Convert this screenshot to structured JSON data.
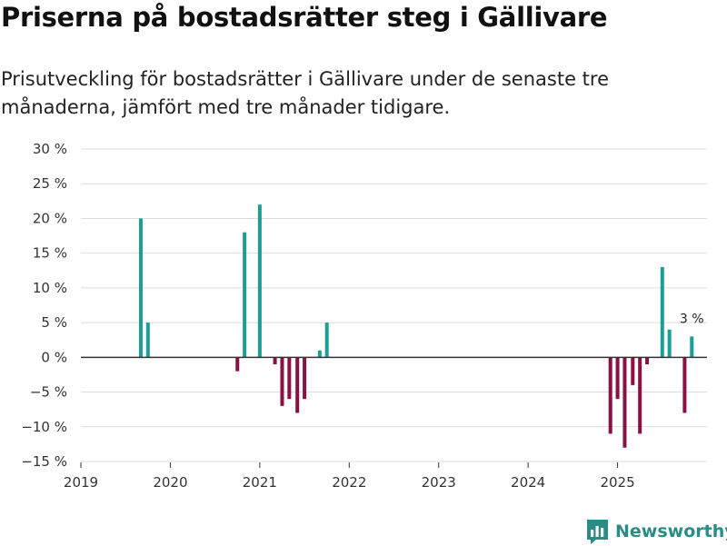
{
  "title": "Priserna på bostadsrätter steg i Gällivare",
  "subtitle": "Prisutveckling för bostadsrätter i Gällivare under de senaste tre månaderna, jämfört med tre månader tidigare.",
  "brand": {
    "name": "Newsworthy",
    "icon": "newsworthy-logo-icon"
  },
  "colors": {
    "positive": "#1a9e96",
    "negative": "#8c0f45",
    "grid": "#dddddd",
    "zero": "#333333",
    "brand": "#2a8c84"
  },
  "chart_data": {
    "type": "bar",
    "title": "Priserna på bostadsrätter steg i Gällivare",
    "xlabel": "",
    "ylabel": "",
    "ylim": [
      -15,
      30
    ],
    "yticks": [
      -15,
      -10,
      -5,
      0,
      5,
      10,
      15,
      20,
      25,
      30
    ],
    "ytick_labels": [
      "−15 %",
      "−10 %",
      "−5 %",
      "0 %",
      "5 %",
      "10 %",
      "15 %",
      "20 %",
      "25 %",
      "30 %"
    ],
    "xlim": [
      2019.0,
      2026.0
    ],
    "xticks": [
      2019,
      2020,
      2021,
      2022,
      2023,
      2024,
      2025
    ],
    "xtick_labels": [
      "2019",
      "2020",
      "2021",
      "2022",
      "2023",
      "2024",
      "2025"
    ],
    "points": [
      {
        "x": 2019.67,
        "y": 20
      },
      {
        "x": 2019.75,
        "y": 5
      },
      {
        "x": 2020.75,
        "y": -2
      },
      {
        "x": 2020.83,
        "y": 18
      },
      {
        "x": 2021.0,
        "y": 22
      },
      {
        "x": 2021.17,
        "y": -1
      },
      {
        "x": 2021.25,
        "y": -7
      },
      {
        "x": 2021.33,
        "y": -6
      },
      {
        "x": 2021.42,
        "y": -8
      },
      {
        "x": 2021.5,
        "y": -6
      },
      {
        "x": 2021.67,
        "y": 1
      },
      {
        "x": 2021.75,
        "y": 5
      },
      {
        "x": 2024.92,
        "y": -11
      },
      {
        "x": 2025.0,
        "y": -6
      },
      {
        "x": 2025.08,
        "y": -13
      },
      {
        "x": 2025.17,
        "y": -4
      },
      {
        "x": 2025.25,
        "y": -11
      },
      {
        "x": 2025.33,
        "y": -1
      },
      {
        "x": 2025.5,
        "y": 13
      },
      {
        "x": 2025.58,
        "y": 4
      },
      {
        "x": 2025.75,
        "y": -8
      },
      {
        "x": 2025.83,
        "y": 3
      }
    ],
    "annotation": {
      "x": 2025.83,
      "y": 3,
      "text": "3 %"
    }
  }
}
